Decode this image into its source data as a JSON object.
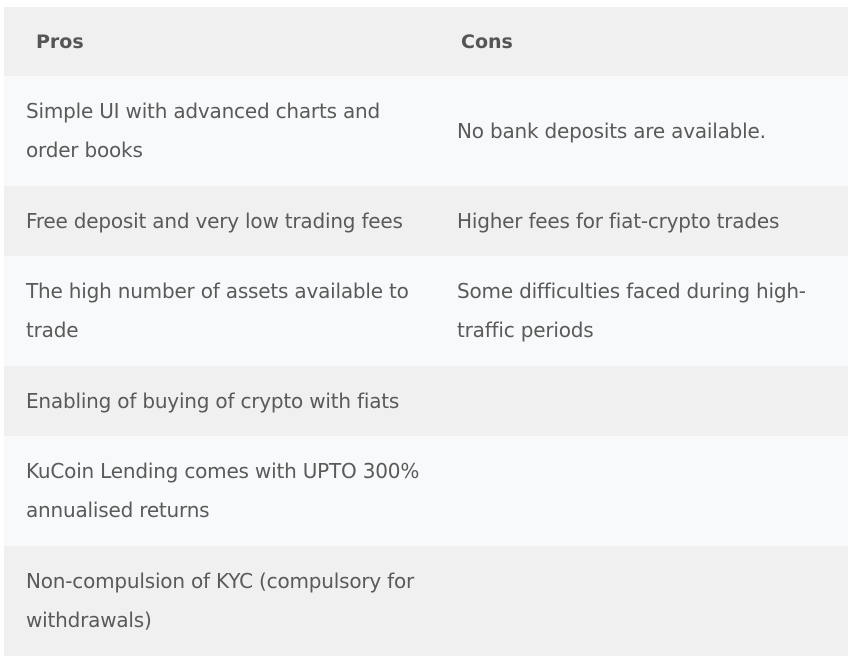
{
  "table": {
    "headers": {
      "pros": "Pros",
      "cons": "Cons"
    },
    "rows": [
      {
        "pros": "Simple UI with advanced charts and order books",
        "cons": "No bank deposits are available."
      },
      {
        "pros": "Free deposit and very low trading fees",
        "cons": "Higher fees for fiat-crypto trades"
      },
      {
        "pros": "The high number of assets available to trade",
        "cons": "Some difficulties faced during high-traffic periods"
      },
      {
        "pros": "Enabling of buying of crypto with fiats",
        "cons": ""
      },
      {
        "pros": "KuCoin Lending comes with UPTO 300% annualised returns",
        "cons": ""
      },
      {
        "pros": "Non-compulsion of KYC (compulsory for withdrawals)",
        "cons": ""
      }
    ]
  }
}
